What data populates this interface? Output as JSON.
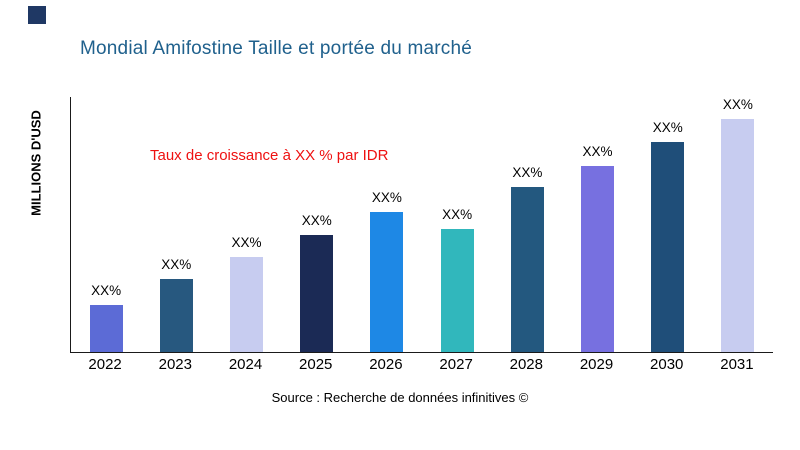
{
  "page": {
    "title": "Mondial Amifostine Taille et portée du marché",
    "y_axis_label": "MILLIONS D'USD",
    "annotation": "Taux de croissance à XX % par IDR",
    "source": "Source : Recherche de données infinitives ©"
  },
  "colors": {
    "title": "#20618D",
    "annotation": "#EE1111",
    "logo": "#1F3864",
    "axis": "#1a1a1a"
  },
  "chart_data": {
    "type": "bar",
    "title": "Mondial Amifostine Taille et portée du marché",
    "xlabel": "",
    "ylabel": "MILLIONS D'USD",
    "categories": [
      "2022",
      "2023",
      "2024",
      "2025",
      "2026",
      "2027",
      "2028",
      "2029",
      "2030",
      "2031"
    ],
    "values": [
      47,
      73,
      95,
      117,
      140,
      123,
      165,
      186,
      210,
      233
    ],
    "value_labels": [
      "XX%",
      "XX%",
      "XX%",
      "XX%",
      "XX%",
      "XX%",
      "XX%",
      "XX%",
      "XX%",
      "XX%"
    ],
    "bar_colors": [
      "#5C6BD6",
      "#27587F",
      "#C7CCF0",
      "#1B2A55",
      "#1E88E5",
      "#31B7BC",
      "#23587F",
      "#7770E0",
      "#1F4E79",
      "#C7CCF0"
    ],
    "ylim": [
      0,
      255
    ],
    "grid": false,
    "legend": false,
    "annotation": "Taux de croissance à XX % par IDR"
  }
}
